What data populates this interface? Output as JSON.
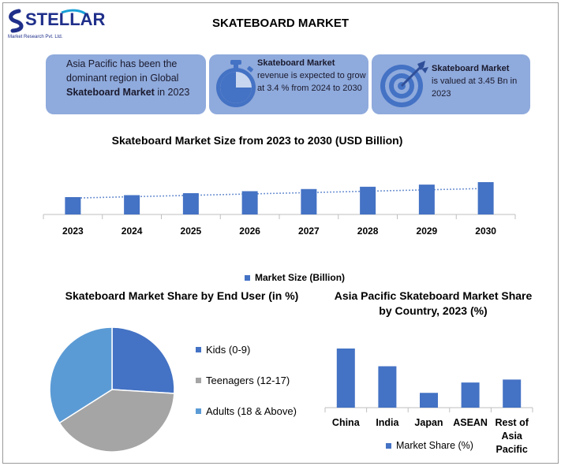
{
  "logo": {
    "name": "STELLAR",
    "tagline": "Market Research Pvt. Ltd."
  },
  "title": "SKATEBOARD MARKET",
  "cards": [
    {
      "parts": [
        "Asia Pacific has been the dominant region in Global ",
        "Skateboard Market",
        " in 2023"
      ],
      "icon": "none"
    },
    {
      "heading": "Skateboard Market",
      "body": "revenue is expected to grow at 3.4 % from 2024 to 2030",
      "icon": "stopwatch-icon"
    },
    {
      "heading": "Skateboard Market",
      "body": "is valued at 3.45 Bn in 2023",
      "icon": "target-icon"
    }
  ],
  "colors": {
    "card_bg": "#8faadc",
    "bar": "#4472c4",
    "pie_kids": "#4472c4",
    "pie_teen": "#a5a5a5",
    "pie_adults": "#5b9bd5",
    "trend": "#4472c4"
  },
  "chart_data": [
    {
      "type": "bar",
      "title": "Skateboard Market Size from 2023 to 2030 (USD Billion)",
      "categories": [
        "2023",
        "2024",
        "2025",
        "2026",
        "2027",
        "2028",
        "2029",
        "2030"
      ],
      "series": [
        {
          "name": "Market Size (Billion)",
          "values": [
            3.45,
            3.57,
            3.69,
            3.81,
            3.94,
            4.08,
            4.21,
            4.36
          ]
        }
      ],
      "trendline": "linear dotted",
      "grid": false,
      "legend": "bottom"
    },
    {
      "type": "pie",
      "title": "Skateboard Market Share by End User (in %)",
      "labels": [
        "Kids (0-9)",
        "Teenagers (12-17)",
        "Adults (18 & Above)"
      ],
      "values": [
        26,
        40,
        34
      ],
      "legend": "right"
    },
    {
      "type": "bar",
      "title": "Asia Pacific Skateboard Market Share by Country, 2023 (%)",
      "categories": [
        "China",
        "India",
        "Japan",
        "ASEAN",
        "Rest of Asia Pacific"
      ],
      "series": [
        {
          "name": "Market Share (%)",
          "values": [
            40,
            28,
            10,
            17,
            19
          ]
        }
      ],
      "grid": false,
      "legend": "bottom"
    }
  ]
}
